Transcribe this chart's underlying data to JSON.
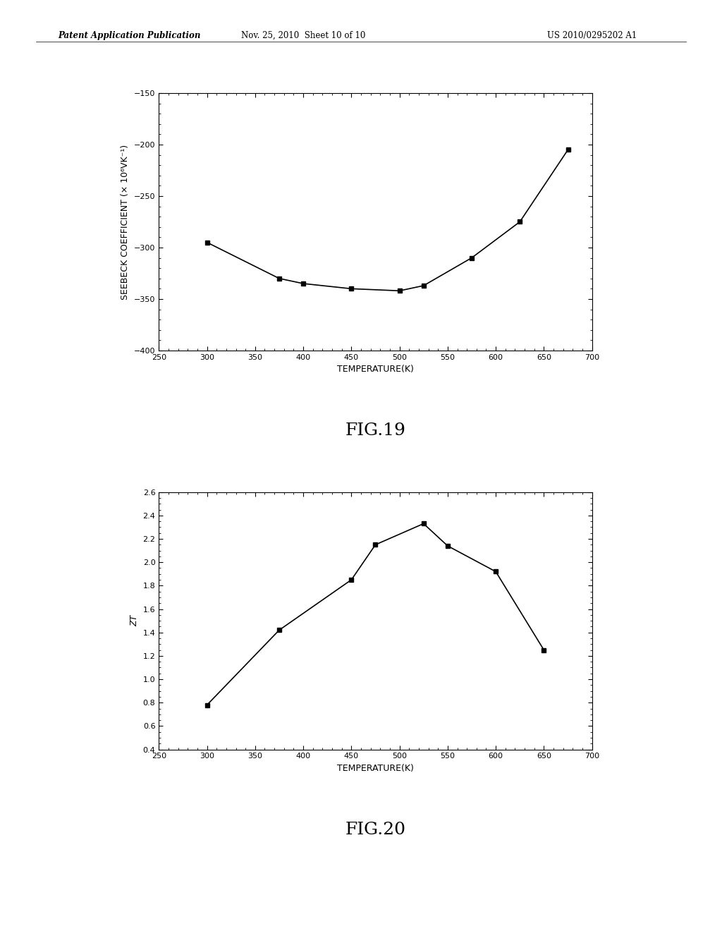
{
  "fig19": {
    "x": [
      300,
      375,
      400,
      450,
      500,
      525,
      575,
      625,
      675
    ],
    "y": [
      -295,
      -330,
      -335,
      -340,
      -342,
      -337,
      -310,
      -275,
      -205
    ],
    "xlabel": "TEMPERATURE(K)",
    "ylabel": "SEEBECK COEFFICIENT (× 10⁶VK⁻¹)",
    "xlim": [
      250,
      700
    ],
    "ylim": [
      -400,
      -150
    ],
    "xticks": [
      250,
      300,
      350,
      400,
      450,
      500,
      550,
      600,
      650,
      700
    ],
    "yticks": [
      -400,
      -350,
      -300,
      -250,
      -200,
      -150
    ],
    "title": "FIG.19"
  },
  "fig20": {
    "x": [
      300,
      375,
      450,
      475,
      525,
      550,
      600,
      650
    ],
    "y": [
      0.78,
      1.42,
      1.85,
      2.15,
      2.33,
      2.14,
      1.92,
      1.25
    ],
    "xlabel": "TEMPERATURE(K)",
    "ylabel": "ZT",
    "xlim": [
      250,
      700
    ],
    "ylim": [
      0.4,
      2.6
    ],
    "xticks": [
      250,
      300,
      350,
      400,
      450,
      500,
      550,
      600,
      650,
      700
    ],
    "yticks": [
      0.4,
      0.6,
      0.8,
      1.0,
      1.2,
      1.4,
      1.6,
      1.8,
      2.0,
      2.2,
      2.4,
      2.6
    ],
    "title": "FIG.20"
  },
  "header_left": "Patent Application Publication",
  "header_mid": "Nov. 25, 2010  Sheet 10 of 10",
  "header_right": "US 2010/0295202 A1",
  "background_color": "#ffffff",
  "line_color": "#000000",
  "marker": "s",
  "marker_size": 5,
  "line_width": 1.2,
  "font_size_axis_label": 9,
  "font_size_tick": 8,
  "font_size_fig_label": 18,
  "font_size_header": 8.5
}
